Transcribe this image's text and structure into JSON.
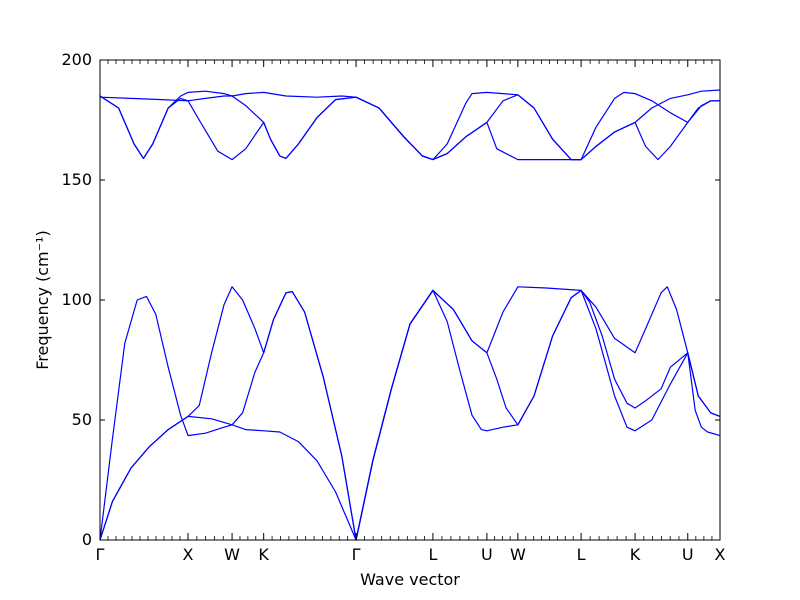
{
  "chart_data": {
    "type": "line",
    "title": "",
    "xlabel": "Wave vector",
    "ylabel": "Frequency (cm⁻¹)",
    "ylim": [
      0,
      200
    ],
    "yticks": [
      0,
      50,
      100,
      150,
      200
    ],
    "xlim": [
      0,
      1
    ],
    "grid": false,
    "legend": "none",
    "line_color": "#0000ff",
    "high_symmetry_points": [
      {
        "label": "Γ",
        "x": 0.0
      },
      {
        "label": "X",
        "x": 0.142
      },
      {
        "label": "W",
        "x": 0.213
      },
      {
        "label": "K",
        "x": 0.264
      },
      {
        "label": "Γ",
        "x": 0.413
      },
      {
        "label": "L",
        "x": 0.537
      },
      {
        "label": "U",
        "x": 0.624
      },
      {
        "label": "W",
        "x": 0.674
      },
      {
        "label": "L",
        "x": 0.776
      },
      {
        "label": "K",
        "x": 0.863
      },
      {
        "label": "U",
        "x": 0.948
      },
      {
        "label": "X",
        "x": 1.0
      }
    ],
    "series": [
      {
        "values": [
          [
            0,
            0
          ],
          [
            0.02,
            16
          ],
          [
            0.05,
            30
          ],
          [
            0.08,
            39
          ],
          [
            0.11,
            46
          ],
          [
            0.142,
            51.5
          ],
          [
            0.18,
            50.5
          ],
          [
            0.213,
            48
          ],
          [
            0.235,
            46
          ],
          [
            0.264,
            45.5
          ],
          [
            0.29,
            45
          ],
          [
            0.32,
            41
          ],
          [
            0.35,
            33
          ],
          [
            0.38,
            20
          ],
          [
            0.413,
            0
          ],
          [
            0.44,
            33
          ],
          [
            0.47,
            63
          ],
          [
            0.5,
            90
          ],
          [
            0.537,
            104
          ],
          [
            0.57,
            96
          ],
          [
            0.6,
            83
          ],
          [
            0.624,
            78
          ],
          [
            0.65,
            95
          ],
          [
            0.674,
            105.5
          ],
          [
            0.72,
            105
          ],
          [
            0.776,
            104
          ],
          [
            0.8,
            97
          ],
          [
            0.83,
            84
          ],
          [
            0.863,
            78
          ],
          [
            0.88,
            88
          ],
          [
            0.905,
            103
          ],
          [
            0.915,
            105.5
          ],
          [
            0.93,
            96
          ],
          [
            0.948,
            78
          ],
          [
            0.965,
            60
          ],
          [
            0.985,
            53
          ],
          [
            1.0,
            51.5
          ]
        ]
      },
      {
        "values": [
          [
            0,
            0
          ],
          [
            0.02,
            16
          ],
          [
            0.05,
            30
          ],
          [
            0.08,
            39
          ],
          [
            0.11,
            46
          ],
          [
            0.142,
            51.5
          ],
          [
            0.16,
            56
          ],
          [
            0.18,
            78
          ],
          [
            0.2,
            98
          ],
          [
            0.213,
            105.5
          ],
          [
            0.23,
            100
          ],
          [
            0.25,
            88
          ],
          [
            0.264,
            78
          ],
          [
            0.28,
            92
          ],
          [
            0.3,
            103
          ],
          [
            0.31,
            103.5
          ],
          [
            0.33,
            95
          ],
          [
            0.36,
            68
          ],
          [
            0.39,
            35
          ],
          [
            0.413,
            0
          ],
          [
            0.44,
            33
          ],
          [
            0.47,
            63
          ],
          [
            0.5,
            90
          ],
          [
            0.537,
            104
          ],
          [
            0.57,
            96
          ],
          [
            0.6,
            83
          ],
          [
            0.624,
            78
          ],
          [
            0.64,
            67
          ],
          [
            0.655,
            55
          ],
          [
            0.674,
            48
          ],
          [
            0.7,
            60
          ],
          [
            0.73,
            85
          ],
          [
            0.76,
            101
          ],
          [
            0.776,
            104
          ],
          [
            0.8,
            88
          ],
          [
            0.83,
            60
          ],
          [
            0.85,
            47
          ],
          [
            0.863,
            45.5
          ],
          [
            0.89,
            50
          ],
          [
            0.92,
            65
          ],
          [
            0.948,
            78
          ],
          [
            0.965,
            60
          ],
          [
            0.985,
            53
          ],
          [
            1.0,
            51.5
          ]
        ]
      },
      {
        "values": [
          [
            0,
            0
          ],
          [
            0.02,
            42
          ],
          [
            0.04,
            82
          ],
          [
            0.06,
            100
          ],
          [
            0.075,
            101.5
          ],
          [
            0.09,
            94
          ],
          [
            0.11,
            72
          ],
          [
            0.13,
            52
          ],
          [
            0.142,
            43.5
          ],
          [
            0.17,
            44.5
          ],
          [
            0.2,
            47
          ],
          [
            0.213,
            48
          ],
          [
            0.23,
            53
          ],
          [
            0.25,
            70
          ],
          [
            0.264,
            78
          ],
          [
            0.28,
            92
          ],
          [
            0.3,
            103
          ],
          [
            0.31,
            103.5
          ],
          [
            0.33,
            95
          ],
          [
            0.36,
            68
          ],
          [
            0.39,
            35
          ],
          [
            0.413,
            0
          ],
          [
            0.44,
            33
          ],
          [
            0.47,
            63
          ],
          [
            0.5,
            90
          ],
          [
            0.537,
            104
          ],
          [
            0.56,
            91
          ],
          [
            0.58,
            71
          ],
          [
            0.6,
            52
          ],
          [
            0.615,
            46
          ],
          [
            0.624,
            45.5
          ],
          [
            0.65,
            47
          ],
          [
            0.674,
            48
          ],
          [
            0.7,
            60
          ],
          [
            0.73,
            85
          ],
          [
            0.76,
            101
          ],
          [
            0.776,
            104
          ],
          [
            0.79,
            99
          ],
          [
            0.81,
            85
          ],
          [
            0.83,
            67
          ],
          [
            0.85,
            57
          ],
          [
            0.863,
            55
          ],
          [
            0.88,
            58
          ],
          [
            0.905,
            63
          ],
          [
            0.92,
            72
          ],
          [
            0.948,
            78
          ],
          [
            0.96,
            54
          ],
          [
            0.97,
            47
          ],
          [
            0.98,
            45
          ],
          [
            1.0,
            43.5
          ]
        ]
      },
      {
        "values": [
          [
            0,
            184.5
          ],
          [
            0.05,
            184
          ],
          [
            0.1,
            183.5
          ],
          [
            0.142,
            183
          ],
          [
            0.17,
            184
          ],
          [
            0.2,
            185
          ],
          [
            0.213,
            185
          ],
          [
            0.235,
            186
          ],
          [
            0.264,
            186.5
          ],
          [
            0.3,
            185
          ],
          [
            0.35,
            184.5
          ],
          [
            0.39,
            185
          ],
          [
            0.413,
            184.5
          ],
          [
            0.45,
            180
          ],
          [
            0.49,
            168
          ],
          [
            0.52,
            160
          ],
          [
            0.537,
            158.5
          ],
          [
            0.56,
            165
          ],
          [
            0.59,
            182
          ],
          [
            0.6,
            186
          ],
          [
            0.624,
            186.5
          ],
          [
            0.674,
            185.5
          ],
          [
            0.7,
            180
          ],
          [
            0.73,
            167
          ],
          [
            0.76,
            158.5
          ],
          [
            0.776,
            158.5
          ],
          [
            0.8,
            172
          ],
          [
            0.83,
            184
          ],
          [
            0.845,
            186.5
          ],
          [
            0.863,
            186
          ],
          [
            0.89,
            183
          ],
          [
            0.92,
            178
          ],
          [
            0.948,
            174
          ],
          [
            0.97,
            181
          ],
          [
            0.985,
            183
          ],
          [
            1.0,
            183
          ]
        ]
      },
      {
        "values": [
          [
            0,
            185
          ],
          [
            0.03,
            180
          ],
          [
            0.055,
            165
          ],
          [
            0.07,
            159
          ],
          [
            0.085,
            165
          ],
          [
            0.11,
            180
          ],
          [
            0.13,
            184
          ],
          [
            0.142,
            183
          ],
          [
            0.16,
            175
          ],
          [
            0.19,
            162
          ],
          [
            0.213,
            158.5
          ],
          [
            0.235,
            163
          ],
          [
            0.264,
            174
          ],
          [
            0.275,
            167
          ],
          [
            0.29,
            160
          ],
          [
            0.3,
            159
          ],
          [
            0.32,
            165
          ],
          [
            0.35,
            176
          ],
          [
            0.38,
            183.5
          ],
          [
            0.413,
            184.5
          ],
          [
            0.45,
            180
          ],
          [
            0.49,
            168
          ],
          [
            0.52,
            160
          ],
          [
            0.537,
            158.5
          ],
          [
            0.56,
            161
          ],
          [
            0.59,
            168
          ],
          [
            0.624,
            174
          ],
          [
            0.64,
            163
          ],
          [
            0.674,
            158.5
          ],
          [
            0.72,
            158.5
          ],
          [
            0.776,
            158.5
          ],
          [
            0.8,
            164
          ],
          [
            0.83,
            170
          ],
          [
            0.863,
            174
          ],
          [
            0.88,
            164
          ],
          [
            0.9,
            158.5
          ],
          [
            0.92,
            164
          ],
          [
            0.948,
            174
          ],
          [
            0.965,
            180
          ],
          [
            0.985,
            183
          ],
          [
            1.0,
            183
          ]
        ]
      },
      {
        "values": [
          [
            0,
            185
          ],
          [
            0.03,
            180
          ],
          [
            0.055,
            165
          ],
          [
            0.07,
            159
          ],
          [
            0.085,
            165
          ],
          [
            0.11,
            180
          ],
          [
            0.13,
            185
          ],
          [
            0.142,
            186.5
          ],
          [
            0.17,
            187
          ],
          [
            0.2,
            186
          ],
          [
            0.213,
            185
          ],
          [
            0.235,
            181
          ],
          [
            0.264,
            174
          ],
          [
            0.275,
            167
          ],
          [
            0.29,
            160
          ],
          [
            0.3,
            159
          ],
          [
            0.32,
            165
          ],
          [
            0.35,
            176
          ],
          [
            0.38,
            183.5
          ],
          [
            0.413,
            184.5
          ],
          [
            0.45,
            180
          ],
          [
            0.49,
            168
          ],
          [
            0.52,
            160
          ],
          [
            0.537,
            158.5
          ],
          [
            0.56,
            161
          ],
          [
            0.59,
            168
          ],
          [
            0.624,
            174
          ],
          [
            0.65,
            183
          ],
          [
            0.674,
            185.5
          ],
          [
            0.7,
            180
          ],
          [
            0.73,
            167
          ],
          [
            0.76,
            158.5
          ],
          [
            0.776,
            158.5
          ],
          [
            0.8,
            164
          ],
          [
            0.83,
            170
          ],
          [
            0.863,
            174
          ],
          [
            0.89,
            180
          ],
          [
            0.92,
            184
          ],
          [
            0.948,
            185.5
          ],
          [
            0.97,
            187
          ],
          [
            1.0,
            187.5
          ]
        ]
      }
    ]
  }
}
